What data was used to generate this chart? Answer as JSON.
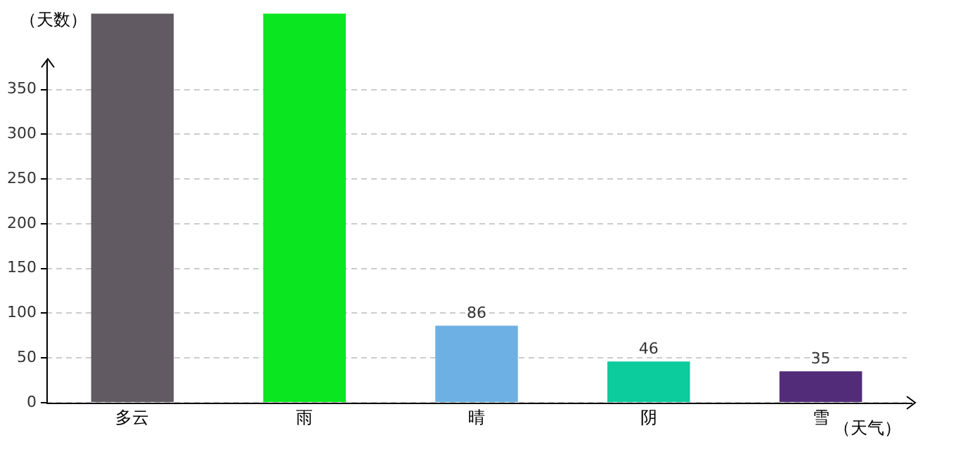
{
  "chart_data": {
    "type": "bar",
    "ylabel": "（天数）",
    "xlabel": "（天气）",
    "categories": [
      "多云",
      "雨",
      "晴",
      "阴",
      "雪"
    ],
    "values": [
      435,
      435,
      86,
      46,
      35
    ],
    "colors": [
      "#625a62",
      "#0ae620",
      "#6db0e3",
      "#0ccb9d",
      "#522c78"
    ],
    "value_labels": [
      null,
      null,
      "86",
      "46",
      "35"
    ],
    "ylim": [
      0,
      435
    ],
    "yticks": [
      0,
      50,
      100,
      150,
      200,
      250,
      300,
      350
    ],
    "grid": "y"
  }
}
